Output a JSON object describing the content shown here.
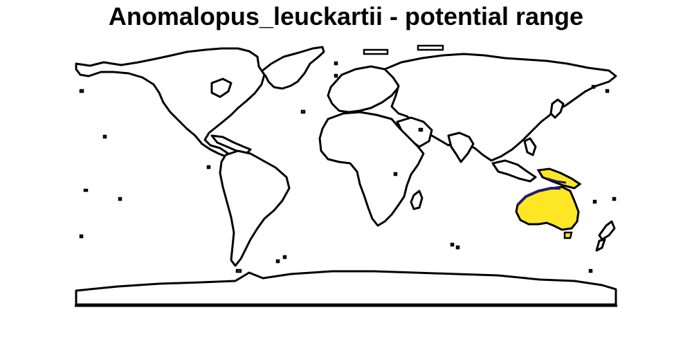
{
  "map": {
    "title": "Anomalopus_leuckartii - potential range"
  },
  "colors": {
    "outline": "#000000",
    "range_fill": "#FDE725",
    "range_edge": "#1F1F6B",
    "background": "#FFFFFF"
  }
}
